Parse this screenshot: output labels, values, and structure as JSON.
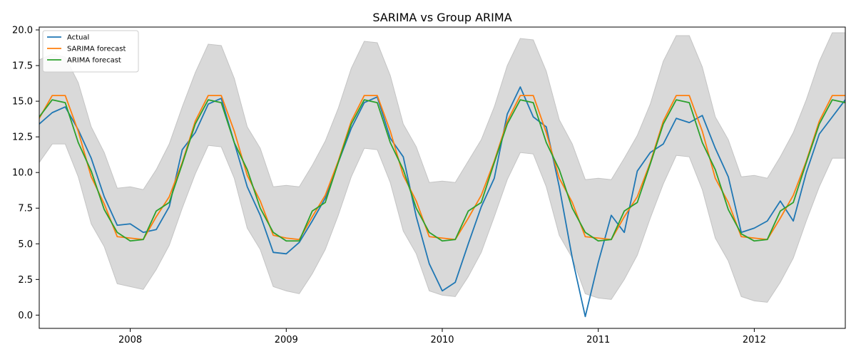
{
  "chart_data": {
    "type": "line",
    "title": "SARIMA vs Group ARIMA",
    "xlabel": "",
    "ylabel": "",
    "x_start": "2007-06",
    "x_end": "2012-08",
    "x_ticks": [
      "2008",
      "2009",
      "2010",
      "2011",
      "2012"
    ],
    "ylim": [
      -0.93,
      20.2
    ],
    "y_ticks": [
      0.0,
      2.5,
      5.0,
      7.5,
      10.0,
      12.5,
      15.0,
      17.5,
      20.0
    ],
    "y_tick_labels": [
      "0.0",
      "2.5",
      "5.0",
      "7.5",
      "10.0",
      "12.5",
      "15.0",
      "17.5",
      "20.0"
    ],
    "grid": false,
    "legend_position": "top-left",
    "x": [
      "2007-06",
      "2007-07",
      "2007-08",
      "2007-09",
      "2007-10",
      "2007-11",
      "2007-12",
      "2008-01",
      "2008-02",
      "2008-03",
      "2008-04",
      "2008-05",
      "2008-06",
      "2008-07",
      "2008-08",
      "2008-09",
      "2008-10",
      "2008-11",
      "2008-12",
      "2009-01",
      "2009-02",
      "2009-03",
      "2009-04",
      "2009-05",
      "2009-06",
      "2009-07",
      "2009-08",
      "2009-09",
      "2009-10",
      "2009-11",
      "2009-12",
      "2010-01",
      "2010-02",
      "2010-03",
      "2010-04",
      "2010-05",
      "2010-06",
      "2010-07",
      "2010-08",
      "2010-09",
      "2010-10",
      "2010-11",
      "2010-12",
      "2011-01",
      "2011-02",
      "2011-03",
      "2011-04",
      "2011-05",
      "2011-06",
      "2011-07",
      "2011-08",
      "2011-09",
      "2011-10",
      "2011-11",
      "2011-12",
      "2012-01",
      "2012-02",
      "2012-03",
      "2012-04",
      "2012-05",
      "2012-06",
      "2012-07",
      "2012-08"
    ],
    "series": [
      {
        "name": "Actual",
        "color": "#1f77b4",
        "values": [
          13.4,
          14.2,
          14.6,
          13.0,
          11.0,
          8.3,
          6.3,
          6.4,
          5.8,
          6.0,
          7.6,
          11.6,
          12.8,
          14.8,
          15.2,
          12.1,
          9.0,
          7.0,
          4.4,
          4.3,
          5.1,
          6.6,
          8.2,
          10.7,
          13.1,
          14.9,
          15.3,
          12.4,
          11.1,
          6.9,
          3.6,
          1.7,
          2.3,
          5.0,
          7.6,
          9.6,
          14.1,
          16.0,
          13.9,
          13.2,
          9.0,
          4.0,
          -0.1,
          3.7,
          7.0,
          5.8,
          10.1,
          11.4,
          12.0,
          13.8,
          13.5,
          14.0,
          11.7,
          9.7,
          5.8,
          6.1,
          6.6,
          8.0,
          6.6,
          10.0,
          12.7,
          13.9,
          15.1
        ]
      },
      {
        "name": "SARIMA forecast",
        "color": "#ff7f0e",
        "values": [
          13.8,
          15.4,
          15.4,
          12.9,
          9.7,
          7.8,
          5.5,
          5.4,
          5.3,
          6.9,
          8.3,
          10.7,
          13.6,
          15.4,
          15.4,
          12.9,
          9.8,
          8.0,
          5.6,
          5.4,
          5.3,
          6.9,
          8.4,
          10.8,
          13.6,
          15.4,
          15.4,
          12.9,
          9.8,
          8.0,
          5.5,
          5.4,
          5.3,
          6.8,
          8.4,
          10.8,
          13.6,
          15.4,
          15.4,
          12.8,
          9.6,
          7.9,
          5.5,
          5.4,
          5.3,
          6.9,
          8.3,
          10.7,
          13.6,
          15.4,
          15.4,
          12.9,
          9.6,
          7.9,
          5.5,
          5.4,
          5.3,
          6.8,
          8.4,
          10.8,
          13.6,
          15.4,
          15.4
        ]
      },
      {
        "name": "ARIMA forecast",
        "color": "#2ca02c",
        "values": [
          13.9,
          15.1,
          14.9,
          12.1,
          10.1,
          7.4,
          5.8,
          5.2,
          5.3,
          7.3,
          7.9,
          10.6,
          13.4,
          15.1,
          14.9,
          12.1,
          10.2,
          7.5,
          5.8,
          5.2,
          5.2,
          7.3,
          7.9,
          10.7,
          13.4,
          15.1,
          14.9,
          12.1,
          10.2,
          7.5,
          5.8,
          5.2,
          5.3,
          7.3,
          7.9,
          10.7,
          13.4,
          15.1,
          14.9,
          12.1,
          10.2,
          7.5,
          5.8,
          5.2,
          5.3,
          7.3,
          7.9,
          10.6,
          13.4,
          15.1,
          14.9,
          12.1,
          10.2,
          7.4,
          5.7,
          5.2,
          5.3,
          7.3,
          7.9,
          10.7,
          13.4,
          15.1,
          14.9
        ]
      }
    ],
    "band": {
      "color": "#d9d9d9",
      "upper": [
        17.9,
        18.3,
        18.1,
        16.3,
        13.2,
        11.4,
        8.9,
        9.0,
        8.8,
        10.2,
        12.0,
        14.6,
        17.0,
        19.0,
        18.9,
        16.6,
        13.2,
        11.7,
        9.0,
        9.1,
        9.0,
        10.5,
        12.2,
        14.5,
        17.3,
        19.2,
        19.1,
        16.8,
        13.4,
        11.8,
        9.3,
        9.4,
        9.3,
        10.8,
        12.3,
        14.6,
        17.5,
        19.4,
        19.3,
        17.1,
        13.7,
        12.0,
        9.5,
        9.6,
        9.5,
        11.0,
        12.6,
        14.8,
        17.8,
        19.6,
        19.6,
        17.4,
        13.9,
        12.3,
        9.7,
        9.8,
        9.6,
        11.1,
        12.8,
        15.1,
        17.8,
        19.8,
        19.8
      ],
      "lower": [
        10.7,
        12.0,
        12.0,
        9.7,
        6.4,
        4.8,
        2.2,
        2.0,
        1.8,
        3.2,
        4.9,
        7.5,
        9.9,
        11.9,
        11.8,
        9.6,
        6.1,
        4.6,
        2.0,
        1.7,
        1.5,
        2.9,
        4.6,
        7.0,
        9.7,
        11.7,
        11.6,
        9.3,
        5.9,
        4.3,
        1.7,
        1.4,
        1.3,
        2.7,
        4.4,
        6.9,
        9.5,
        11.4,
        11.3,
        9.0,
        5.6,
        4.0,
        1.5,
        1.2,
        1.1,
        2.5,
        4.2,
        6.8,
        9.2,
        11.2,
        11.1,
        8.8,
        5.4,
        3.8,
        1.3,
        1.0,
        0.9,
        2.3,
        4.0,
        6.6,
        9.0,
        11.0,
        11.0
      ]
    }
  }
}
